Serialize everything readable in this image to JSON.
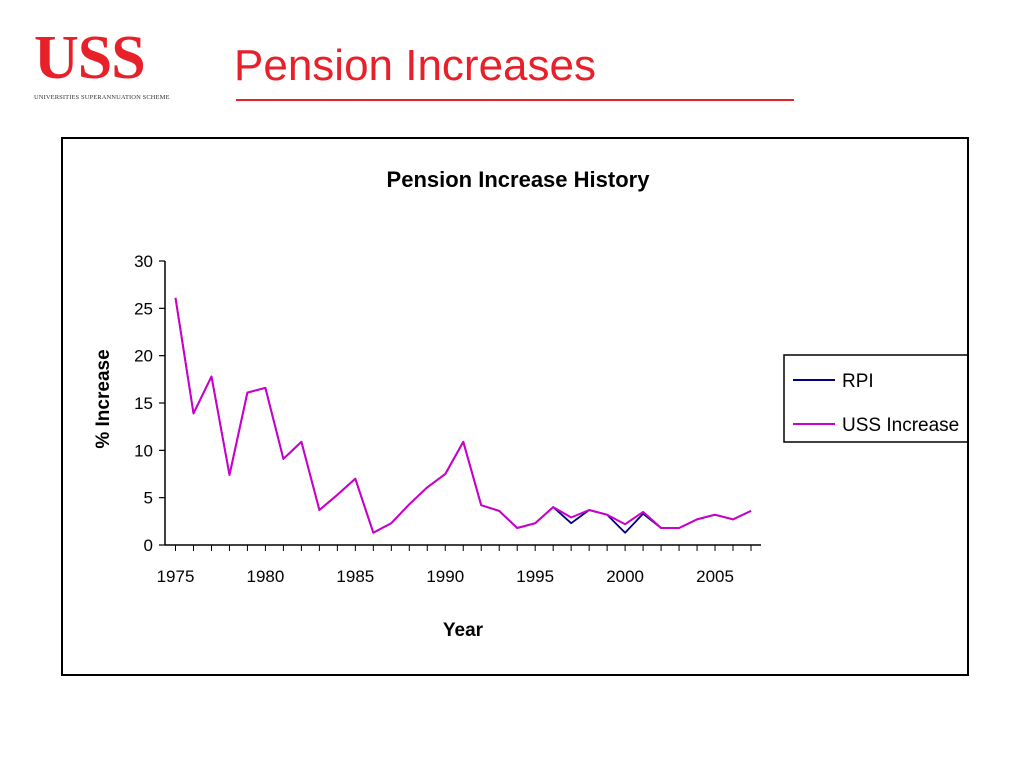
{
  "logo": {
    "text": "USS",
    "subtitle": "UNIVERSITIES SUPERANNUATION SCHEME"
  },
  "slide": {
    "title": "Pension Increases"
  },
  "colors": {
    "brand_red": "#e8202a",
    "rpi_line": "#000080",
    "uss_line": "#cc00cc"
  },
  "chart_data": {
    "type": "line",
    "title": "Pension Increase History",
    "xlabel": "Year",
    "ylabel": "% Increase",
    "xlim": [
      1975,
      2007
    ],
    "ylim": [
      0,
      30
    ],
    "x_ticks": [
      1975,
      1980,
      1985,
      1990,
      1995,
      2000,
      2005
    ],
    "y_ticks": [
      0,
      5,
      10,
      15,
      20,
      25,
      30
    ],
    "grid": false,
    "legend_position": "right",
    "x": [
      1975,
      1976,
      1977,
      1978,
      1979,
      1980,
      1981,
      1982,
      1983,
      1984,
      1985,
      1986,
      1987,
      1988,
      1989,
      1990,
      1991,
      1992,
      1993,
      1994,
      1995,
      1996,
      1997,
      1998,
      1999,
      2000,
      2001,
      2002,
      2003,
      2004,
      2005,
      2006,
      2007
    ],
    "series": [
      {
        "name": "RPI",
        "color": "#000080",
        "values": [
          26.1,
          13.9,
          17.8,
          7.4,
          16.1,
          16.6,
          9.1,
          10.9,
          3.7,
          5.3,
          7.0,
          1.3,
          2.3,
          4.3,
          6.1,
          7.5,
          10.9,
          4.2,
          3.6,
          1.8,
          2.3,
          4.0,
          2.3,
          3.7,
          3.2,
          1.3,
          3.3,
          1.8,
          1.8,
          2.7,
          3.2,
          2.7,
          3.6
        ]
      },
      {
        "name": "USS Increase",
        "color": "#cc00cc",
        "values": [
          26.1,
          13.9,
          17.8,
          7.4,
          16.1,
          16.6,
          9.1,
          10.9,
          3.7,
          5.3,
          7.0,
          1.3,
          2.3,
          4.3,
          6.1,
          7.5,
          10.9,
          4.2,
          3.6,
          1.8,
          2.3,
          4.0,
          2.9,
          3.7,
          3.2,
          2.2,
          3.5,
          1.8,
          1.8,
          2.7,
          3.2,
          2.7,
          3.6
        ]
      }
    ]
  }
}
